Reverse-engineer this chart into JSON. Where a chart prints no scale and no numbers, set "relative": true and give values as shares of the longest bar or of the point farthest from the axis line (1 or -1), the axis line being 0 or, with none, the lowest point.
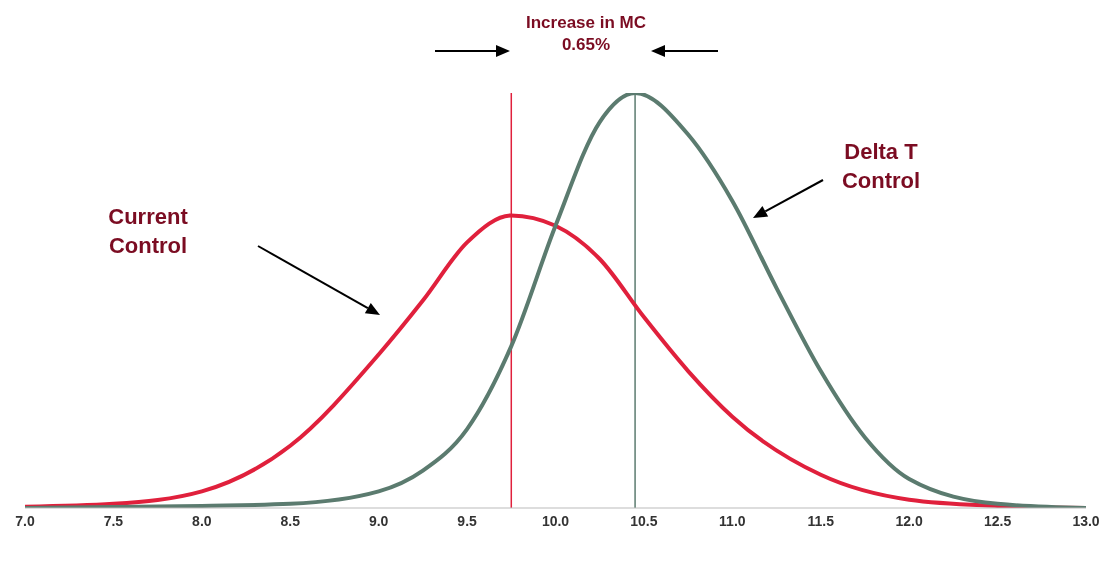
{
  "chart_data": {
    "type": "line",
    "relative": true,
    "xlim": [
      7.0,
      13.0
    ],
    "xticks": [
      {
        "value": 7.0,
        "label": "7.0"
      },
      {
        "value": 7.5,
        "label": "7.5"
      },
      {
        "value": 8.0,
        "label": "8.0"
      },
      {
        "value": 8.5,
        "label": "8.5"
      },
      {
        "value": 9.0,
        "label": "9.0"
      },
      {
        "value": 9.5,
        "label": "9.5"
      },
      {
        "value": 10.0,
        "label": "10.0"
      },
      {
        "value": 10.5,
        "label": "10.5"
      },
      {
        "value": 11.0,
        "label": "11.0"
      },
      {
        "value": 11.5,
        "label": "11.5"
      },
      {
        "value": 12.0,
        "label": "12.0"
      },
      {
        "value": 12.5,
        "label": "12.5"
      },
      {
        "value": 13.0,
        "label": "13.0"
      }
    ],
    "series": [
      {
        "color": "#e0203c",
        "x": [
          7.0,
          7.5,
          8.0,
          8.5,
          9.0,
          9.25,
          9.5,
          9.75,
          10.0,
          10.25,
          10.5,
          10.75,
          11.0,
          11.5,
          12.0,
          12.5,
          13.0
        ],
        "values": [
          0.003,
          0.01,
          0.04,
          0.15,
          0.37,
          0.5,
          0.64,
          0.705,
          0.68,
          0.6,
          0.46,
          0.33,
          0.22,
          0.08,
          0.02,
          0.005,
          0
        ]
      },
      {
        "color": "#5b7b6f",
        "x": [
          7.0,
          8.0,
          8.5,
          9.0,
          9.25,
          9.5,
          9.75,
          10.0,
          10.25,
          10.45,
          10.75,
          11.0,
          11.25,
          11.5,
          11.75,
          12.0,
          12.5,
          13.0
        ],
        "values": [
          0,
          0.005,
          0.01,
          0.04,
          0.09,
          0.19,
          0.39,
          0.68,
          0.93,
          1,
          0.9,
          0.74,
          0.53,
          0.33,
          0.17,
          0.07,
          0.01,
          0
        ]
      }
    ],
    "ref_lines": [
      {
        "axis": "x",
        "value": 9.75,
        "color": "#e0203c"
      },
      {
        "axis": "x",
        "value": 10.45,
        "color": "#5b7b6f"
      }
    ],
    "annotations": [
      "Increase in MC\n0.65%",
      "Current\nControl",
      "Delta T\nControl"
    ],
    "marker": "none",
    "line_style": "solid"
  }
}
